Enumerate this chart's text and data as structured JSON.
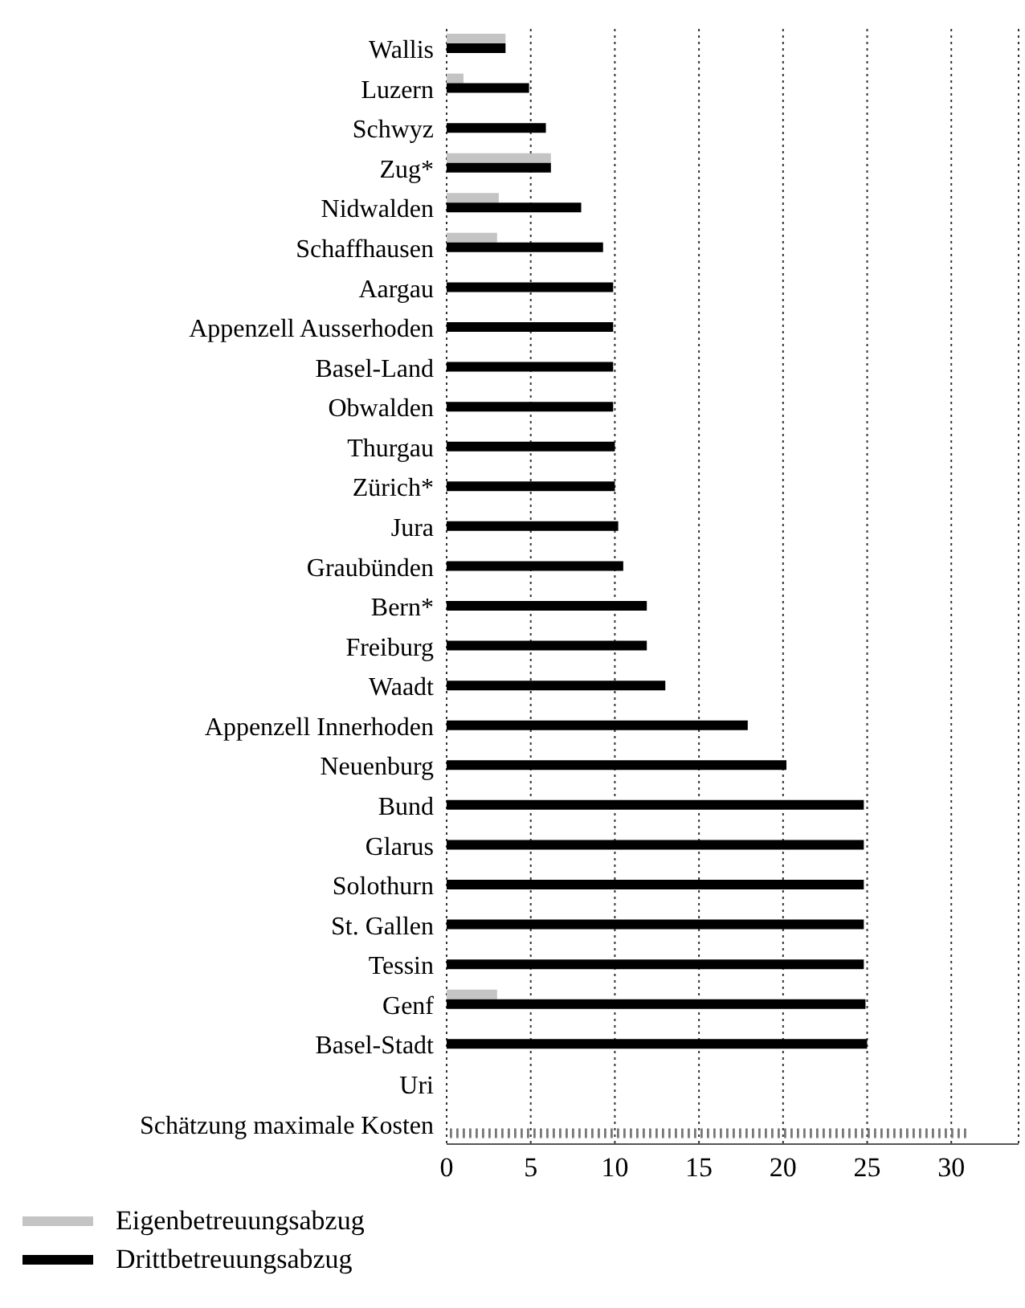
{
  "chart_data": {
    "type": "bar",
    "orientation": "horizontal",
    "categories": [
      "Wallis",
      "Luzern",
      "Schwyz",
      "Zug*",
      "Nidwalden",
      "Schaffhausen",
      "Aargau",
      "Appenzell Ausserhoden",
      "Basel-Land",
      "Obwalden",
      "Thurgau",
      "Zürich*",
      "Jura",
      "Graubünden",
      "Bern*",
      "Freiburg",
      "Waadt",
      "Appenzell Innerhoden",
      "Neuenburg",
      "Bund",
      "Glarus",
      "Solothurn",
      "St. Gallen",
      "Tessin",
      "Genf",
      "Basel-Stadt",
      "Uri",
      "Schätzung maximale Kosten"
    ],
    "series": [
      {
        "name": "Eigenbetreuungsabzug",
        "color": "#c4c4c4",
        "values": [
          3.5,
          1.0,
          null,
          6.2,
          3.1,
          3.0,
          null,
          null,
          null,
          null,
          null,
          null,
          null,
          null,
          null,
          null,
          null,
          null,
          null,
          null,
          null,
          null,
          null,
          null,
          3.0,
          null,
          null,
          null
        ]
      },
      {
        "name": "Drittbetreuungsabzug",
        "color": "#000000",
        "values": [
          3.5,
          4.9,
          5.9,
          6.2,
          8.0,
          9.3,
          9.9,
          9.9,
          9.9,
          9.9,
          10.0,
          10.0,
          10.2,
          10.5,
          11.9,
          11.9,
          13.0,
          17.9,
          20.2,
          24.8,
          24.8,
          24.8,
          24.8,
          24.8,
          24.9,
          25.0,
          null,
          null
        ]
      },
      {
        "color": "#777777",
        "values": [
          null,
          null,
          null,
          null,
          null,
          null,
          null,
          null,
          null,
          null,
          null,
          null,
          null,
          null,
          null,
          null,
          null,
          null,
          null,
          null,
          null,
          null,
          null,
          null,
          null,
          null,
          null,
          31.0
        ]
      }
    ],
    "xlim": [
      0,
      34
    ],
    "xticks": [
      0,
      5,
      10,
      15,
      20,
      25,
      30
    ],
    "grid": "x",
    "legend": "bottom left"
  }
}
